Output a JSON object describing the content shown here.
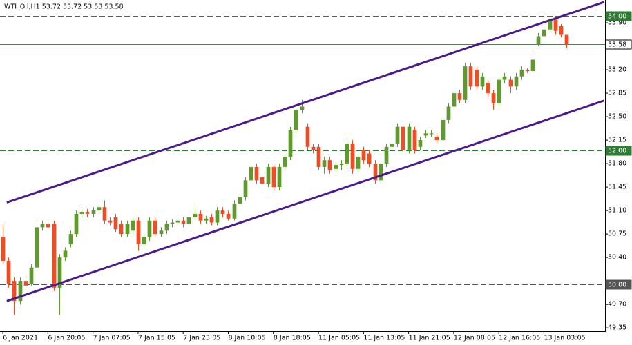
{
  "chart_data": {
    "type": "candlestick",
    "title": "WTI_Oil,H1  53.72 53.72 53.53 53.58",
    "categories": [
      "6 Jan 2021",
      null,
      null,
      null,
      null,
      null,
      null,
      null,
      "6 Jan 20:05",
      null,
      null,
      null,
      null,
      null,
      null,
      null,
      "7 Jan 07:05",
      null,
      null,
      null,
      null,
      null,
      null,
      null,
      "7 Jan 15:05",
      null,
      null,
      null,
      null,
      null,
      null,
      null,
      "7 Jan 23:05",
      null,
      null,
      null,
      null,
      null,
      null,
      null,
      "8 Jan 10:05",
      null,
      null,
      null,
      null,
      null,
      null,
      null,
      "8 Jan 18:05",
      null,
      null,
      null,
      null,
      null,
      null,
      null,
      "11 Jan 05:05",
      null,
      null,
      null,
      null,
      null,
      null,
      null,
      "11 Jan 13:05",
      null,
      null,
      null,
      null,
      null,
      null,
      null,
      "11 Jan 21:05",
      null,
      null,
      null,
      null,
      null,
      null,
      null,
      "12 Jan 08:05",
      null,
      null,
      null,
      null,
      null,
      null,
      null,
      "12 Jan 16:05",
      null,
      null,
      null,
      null,
      null,
      null,
      null,
      "13 Jan 03:05",
      null,
      null,
      null,
      null
    ],
    "open": [
      50.7,
      50.35,
      50.05,
      49.75,
      50.05,
      50.0,
      50.25,
      50.85,
      50.9,
      50.9,
      49.95,
      50.4,
      50.6,
      50.75,
      51.05,
      51.08,
      51.05,
      51.1,
      51.15,
      50.95,
      51.0,
      50.9,
      50.75,
      50.8,
      50.95,
      50.6,
      50.7,
      50.95,
      50.75,
      50.8,
      50.9,
      50.92,
      50.95,
      50.9,
      51.0,
      51.05,
      50.95,
      51.0,
      50.92,
      51.1,
      51.05,
      50.98,
      51.2,
      51.3,
      51.55,
      51.75,
      51.6,
      51.5,
      51.75,
      51.45,
      51.75,
      51.9,
      52.3,
      52.6,
      52.35,
      52.05,
      52.05,
      51.75,
      51.85,
      51.72,
      51.78,
      51.8,
      52.1,
      51.72,
      52.0,
      51.95,
      51.8,
      51.55,
      51.8,
      52.05,
      52.1,
      52.35,
      52.0,
      52.3,
      52.05,
      52.22,
      52.25,
      52.2,
      52.15,
      52.45,
      52.65,
      52.85,
      52.75,
      53.25,
      53.2,
      52.95,
      53.0,
      52.85,
      52.7,
      53.05,
      53.05,
      52.95,
      53.1,
      53.2,
      53.18,
      53.58,
      53.7,
      53.8,
      53.95,
      53.85,
      53.72
    ],
    "high": [
      50.9,
      50.4,
      50.1,
      50.1,
      50.1,
      50.3,
      50.95,
      50.95,
      50.95,
      50.95,
      50.45,
      50.55,
      50.8,
      51.1,
      51.12,
      51.12,
      51.15,
      51.2,
      51.25,
      51.0,
      51.05,
      50.95,
      50.95,
      51.0,
      51.0,
      50.75,
      51.0,
      51.0,
      50.85,
      50.95,
      50.97,
      51.0,
      51.0,
      51.05,
      51.15,
      51.1,
      51.02,
      51.05,
      51.15,
      51.15,
      51.1,
      51.25,
      51.35,
      51.6,
      51.85,
      51.8,
      51.65,
      51.8,
      51.8,
      51.8,
      51.95,
      52.35,
      52.65,
      52.75,
      52.4,
      52.1,
      52.1,
      51.9,
      51.9,
      51.82,
      51.85,
      52.15,
      52.15,
      51.95,
      52.05,
      52.0,
      51.85,
      51.85,
      52.1,
      52.15,
      52.4,
      52.4,
      52.4,
      52.35,
      52.2,
      52.3,
      52.3,
      52.25,
      52.5,
      52.7,
      52.9,
      52.9,
      53.3,
      53.3,
      53.25,
      53.15,
      53.05,
      52.9,
      53.1,
      53.15,
      53.1,
      53.15,
      53.25,
      53.22,
      53.45,
      53.75,
      53.85,
      54.0,
      53.98,
      53.88,
      53.72
    ],
    "low": [
      50.3,
      49.95,
      49.55,
      49.7,
      49.95,
      49.98,
      50.2,
      50.8,
      50.8,
      49.9,
      49.55,
      50.35,
      50.55,
      50.7,
      51.0,
      51.0,
      51.0,
      51.05,
      50.9,
      50.88,
      50.78,
      50.7,
      50.7,
      50.75,
      50.5,
      50.55,
      50.65,
      50.7,
      50.7,
      50.75,
      50.85,
      50.88,
      50.85,
      50.85,
      50.95,
      50.9,
      50.9,
      50.88,
      50.88,
      51.0,
      50.95,
      50.95,
      51.15,
      51.25,
      51.5,
      51.5,
      51.4,
      51.45,
      51.4,
      51.4,
      51.7,
      51.85,
      52.25,
      52.55,
      52.0,
      51.95,
      51.7,
      51.65,
      51.65,
      51.65,
      51.7,
      51.75,
      51.65,
      51.68,
      51.8,
      51.75,
      51.5,
      51.5,
      51.75,
      52.0,
      52.05,
      51.95,
      51.95,
      51.95,
      52.0,
      52.18,
      52.2,
      52.1,
      52.1,
      52.4,
      52.6,
      52.7,
      52.7,
      52.9,
      52.9,
      52.9,
      52.8,
      52.6,
      52.65,
      53.0,
      52.85,
      52.9,
      53.05,
      53.15,
      53.15,
      53.55,
      53.65,
      53.75,
      53.72,
      53.68,
      53.53
    ],
    "close": [
      50.35,
      50.0,
      49.75,
      50.05,
      49.98,
      50.25,
      50.85,
      50.9,
      50.85,
      49.95,
      50.4,
      50.5,
      50.75,
      51.05,
      51.08,
      51.05,
      51.1,
      51.15,
      50.95,
      50.92,
      50.82,
      50.75,
      50.9,
      50.95,
      50.6,
      50.7,
      50.95,
      50.75,
      50.8,
      50.9,
      50.92,
      50.95,
      50.9,
      51.0,
      51.05,
      50.95,
      50.98,
      50.92,
      51.1,
      51.05,
      50.98,
      51.2,
      51.3,
      51.55,
      51.75,
      51.55,
      51.5,
      51.75,
      51.45,
      51.75,
      51.9,
      52.3,
      52.6,
      52.65,
      52.05,
      52.0,
      51.75,
      51.85,
      51.7,
      51.78,
      51.8,
      52.1,
      51.72,
      51.9,
      51.85,
      51.8,
      51.55,
      51.8,
      52.05,
      52.1,
      52.35,
      52.0,
      52.35,
      52.0,
      52.15,
      52.25,
      52.25,
      52.15,
      52.45,
      52.65,
      52.85,
      52.75,
      53.25,
      52.95,
      52.95,
      53.1,
      52.85,
      52.7,
      53.05,
      53.1,
      52.95,
      53.1,
      53.2,
      53.18,
      53.35,
      53.7,
      53.8,
      53.95,
      53.78,
      53.72,
      53.58
    ],
    "up_color": "#5e9a2c",
    "down_color": "#ec4f26",
    "xlim": [
      -0.5,
      106.85
    ],
    "ylim": [
      49.3,
      54.24
    ],
    "yticks": [
      {
        "value": 53.9,
        "label": "53.90"
      },
      {
        "value": 53.2,
        "label": "53.20"
      },
      {
        "value": 52.85,
        "label": "52.85"
      },
      {
        "value": 52.5,
        "label": "52.50"
      },
      {
        "value": 52.15,
        "label": "52.15"
      },
      {
        "value": 51.8,
        "label": "51.80"
      },
      {
        "value": 51.45,
        "label": "51.45"
      },
      {
        "value": 51.1,
        "label": "51.10"
      },
      {
        "value": 50.75,
        "label": "50.75"
      },
      {
        "value": 50.4,
        "label": "50.40"
      },
      {
        "value": 49.7,
        "label": "49.70"
      },
      {
        "value": 49.35,
        "label": "49.35"
      }
    ],
    "levels": [
      {
        "value": 54.0,
        "label": "54.00",
        "style": "dashed",
        "color": "#2e7d32"
      },
      {
        "value": 53.58,
        "label": "53.58",
        "style": "solid",
        "color": "#5a7a5a"
      },
      {
        "value": 52.0,
        "label": "52.00",
        "style": "dashed",
        "color": "#2e7d32"
      },
      {
        "value": 50.0,
        "label": "50.00",
        "style": "dashed",
        "color": "#555555"
      }
    ],
    "trendlines": [
      {
        "x": [
          0.7,
          106.7
        ],
        "values": [
          51.22,
          54.21
        ],
        "color": "#4b1a8c"
      },
      {
        "x": [
          0.7,
          106.7
        ],
        "values": [
          49.75,
          52.74
        ],
        "color": "#4b1a8c"
      }
    ]
  }
}
